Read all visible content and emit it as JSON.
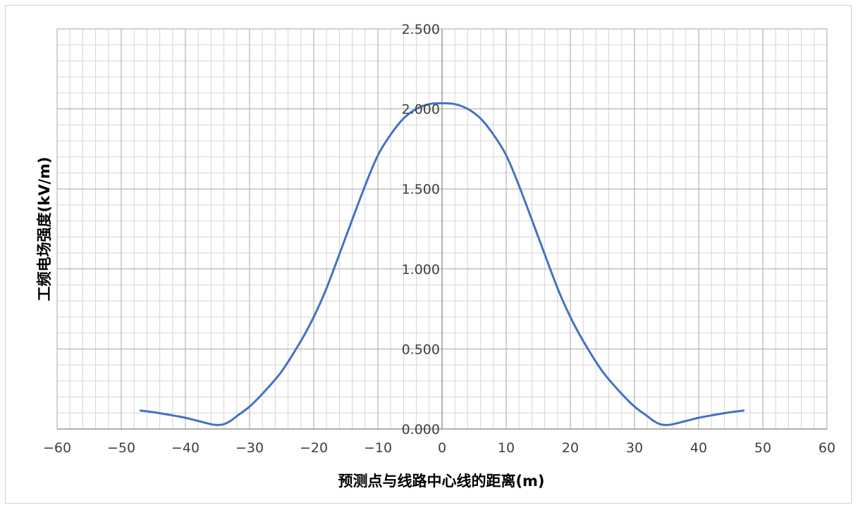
{
  "chart_data": {
    "type": "line",
    "title": "",
    "xlabel": "预测点与线路中心线的距离(m)",
    "ylabel": "工频电场强度(kV/m)",
    "xlim": [
      -60,
      60
    ],
    "ylim": [
      0,
      2.5
    ],
    "x_major_step": 10,
    "x_minor_step": 2,
    "y_major_step": 0.5,
    "y_minor_step": 0.1,
    "grid": true,
    "legend": "none",
    "x_tick_labels": [
      "−60",
      "−50",
      "−40",
      "−30",
      "−20",
      "−10",
      "0",
      "10",
      "20",
      "30",
      "40",
      "50",
      "60"
    ],
    "y_tick_labels": [
      "0.000",
      "0.500",
      "1.000",
      "1.500",
      "2.000",
      "2.500"
    ],
    "colors": {
      "line": "#4472c4",
      "major_grid": "#a6a6a6",
      "minor_grid": "#d4d4d4",
      "axis": "#808080"
    },
    "series": [
      {
        "x": [
          -47,
          -45,
          -42,
          -40,
          -38,
          -36,
          -35,
          -34,
          -33,
          -32,
          -30,
          -28,
          -25,
          -22,
          -20,
          -18,
          -15,
          -12,
          -10,
          -8,
          -6,
          -4,
          -2,
          0,
          2,
          4,
          6,
          8,
          10,
          12,
          15,
          18,
          20,
          22,
          25,
          28,
          30,
          32,
          33,
          34,
          35,
          36,
          38,
          40,
          42,
          45,
          47
        ],
        "y": [
          0.115,
          0.105,
          0.085,
          0.07,
          0.05,
          0.03,
          0.025,
          0.03,
          0.05,
          0.08,
          0.14,
          0.22,
          0.36,
          0.55,
          0.7,
          0.88,
          1.2,
          1.52,
          1.71,
          1.84,
          1.94,
          2.0,
          2.03,
          2.035,
          2.03,
          2.0,
          1.94,
          1.84,
          1.71,
          1.52,
          1.2,
          0.88,
          0.7,
          0.55,
          0.36,
          0.22,
          0.14,
          0.08,
          0.05,
          0.03,
          0.025,
          0.03,
          0.05,
          0.07,
          0.085,
          0.105,
          0.115
        ]
      }
    ]
  }
}
